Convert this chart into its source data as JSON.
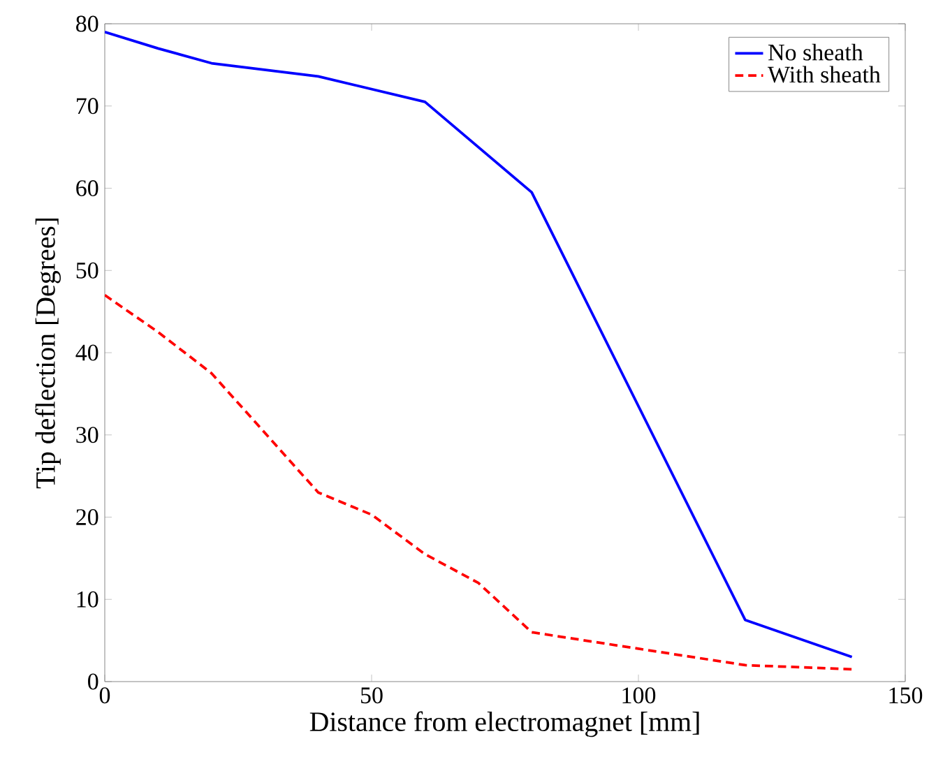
{
  "chart_data": {
    "type": "line",
    "xlabel": "Distance from electromagnet [mm]",
    "ylabel": "Tip deflection [Degrees]",
    "xlim": [
      0,
      150
    ],
    "ylim": [
      0,
      80
    ],
    "xticks": [
      0,
      50,
      100,
      150
    ],
    "yticks": [
      0,
      10,
      20,
      30,
      40,
      50,
      60,
      70,
      80
    ],
    "legend": "top right",
    "grid": false,
    "series": [
      {
        "name": "No sheath",
        "color": "#0000ff",
        "line_style": "solid",
        "x": [
          0,
          10,
          20,
          40,
          60,
          80,
          120,
          140
        ],
        "values": [
          79,
          77,
          75.2,
          73.6,
          70.5,
          59.5,
          7.5,
          3
        ]
      },
      {
        "name": "With sheath",
        "color": "#ff0000",
        "line_style": "dashed",
        "x": [
          0,
          10,
          20,
          40,
          50,
          60,
          70,
          80,
          100,
          120,
          140
        ],
        "values": [
          47,
          42.5,
          37.5,
          23,
          20.3,
          15.5,
          12,
          6,
          4,
          2,
          1.5
        ]
      }
    ]
  }
}
